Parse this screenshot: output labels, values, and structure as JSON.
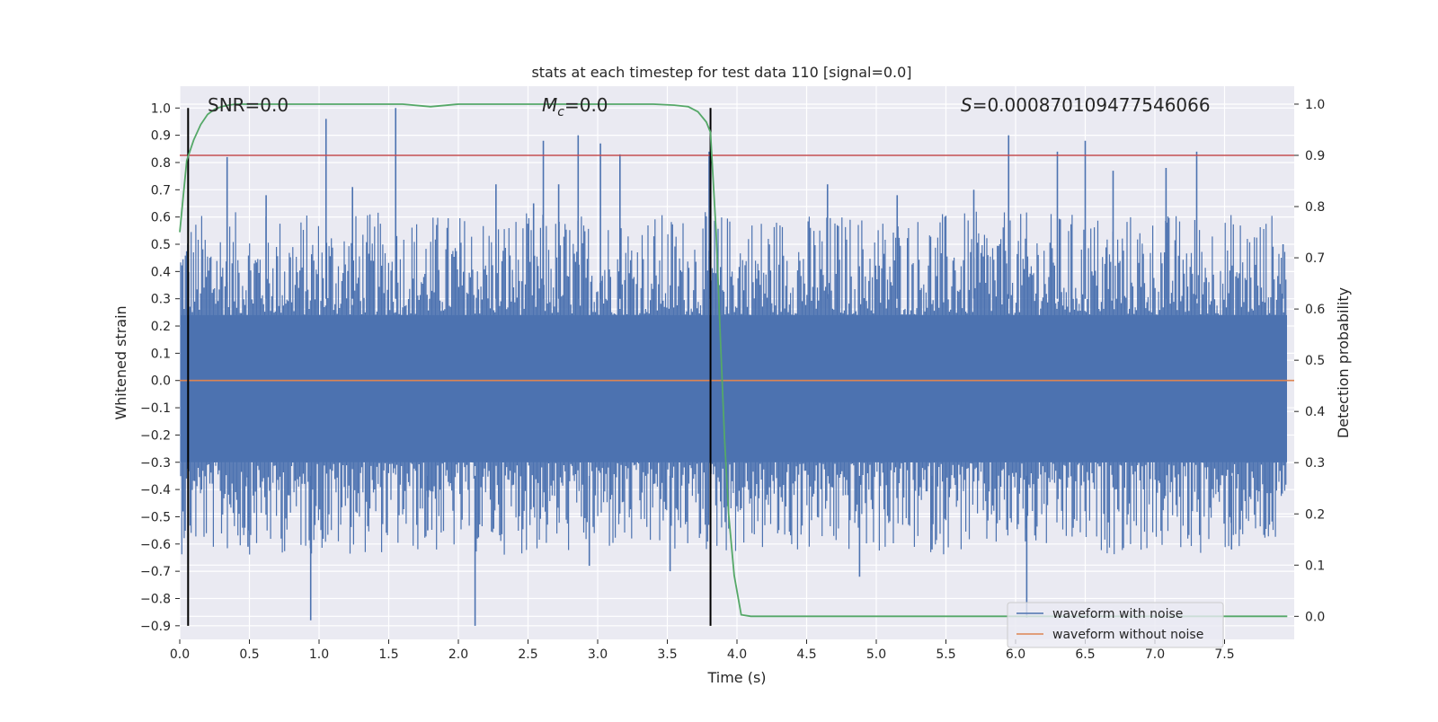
{
  "chart_data": {
    "type": "line",
    "title": "stats at each timestep for test data 110 [signal=0.0]",
    "xlabel": "Time (s)",
    "ylabel": "Whitened strain",
    "y2label": "Detection probability",
    "xlim": [
      0.0,
      8.0
    ],
    "ylim": [
      -0.95,
      1.08
    ],
    "y2lim": [
      -0.045,
      1.035
    ],
    "x_ticks": [
      "0.0",
      "0.5",
      "1.0",
      "1.5",
      "2.0",
      "2.5",
      "3.0",
      "3.5",
      "4.0",
      "4.5",
      "5.0",
      "5.5",
      "6.0",
      "6.5",
      "7.0",
      "7.5"
    ],
    "x_tick_values": [
      0.0,
      0.5,
      1.0,
      1.5,
      2.0,
      2.5,
      3.0,
      3.5,
      4.0,
      4.5,
      5.0,
      5.5,
      6.0,
      6.5,
      7.0,
      7.5
    ],
    "y_ticks": [
      "1.0",
      "0.9",
      "0.8",
      "0.7",
      "0.6",
      "0.5",
      "0.4",
      "0.3",
      "0.2",
      "0.1",
      "0.0",
      "−0.1",
      "−0.2",
      "−0.3",
      "−0.4",
      "−0.5",
      "−0.6",
      "−0.7",
      "−0.8",
      "−0.9"
    ],
    "y_tick_values": [
      1.0,
      0.9,
      0.8,
      0.7,
      0.6,
      0.5,
      0.4,
      0.3,
      0.2,
      0.1,
      0.0,
      -0.1,
      -0.2,
      -0.3,
      -0.4,
      -0.5,
      -0.6,
      -0.7,
      -0.8,
      -0.9
    ],
    "y2_ticks": [
      "1.0",
      "0.9",
      "0.8",
      "0.7",
      "0.6",
      "0.5",
      "0.4",
      "0.3",
      "0.2",
      "0.1",
      "0.0"
    ],
    "y2_tick_values": [
      1.0,
      0.9,
      0.8,
      0.7,
      0.6,
      0.5,
      0.4,
      0.3,
      0.2,
      0.1,
      0.0
    ],
    "annotations": {
      "snr": "SNR=0.0",
      "mc_symbol": "M",
      "mc_sub": "c",
      "mc_value": "=0.0",
      "s_symbol": "S",
      "s_value": "=0.000870109477546066"
    },
    "vlines_x": [
      0.06,
      3.81
    ],
    "threshold_y2": 0.9,
    "series": [
      {
        "name": "waveform with noise",
        "color": "#4c72b0",
        "display": "dense noise band, envelope approx ±0.45 with spikes",
        "spikes_x": [
          0.06,
          0.34,
          0.49,
          0.62,
          0.94,
          1.05,
          1.24,
          1.55,
          1.78,
          2.12,
          2.27,
          2.54,
          2.61,
          2.72,
          2.86,
          2.94,
          3.02,
          3.16,
          3.52,
          3.8,
          4.65,
          4.88,
          5.15,
          5.4,
          5.7,
          5.95,
          6.08,
          6.3,
          6.5,
          6.7,
          7.08,
          7.3,
          7.55,
          7.92
        ],
        "spikes_y": [
          0.95,
          0.82,
          -0.61,
          0.68,
          -0.88,
          0.96,
          0.71,
          1.0,
          -0.55,
          -0.9,
          0.72,
          0.65,
          0.88,
          0.72,
          0.9,
          -0.68,
          0.87,
          0.83,
          -0.7,
          0.84,
          0.72,
          -0.72,
          0.68,
          -0.62,
          0.7,
          0.9,
          -0.87,
          0.84,
          0.88,
          0.77,
          0.78,
          0.84,
          -0.62,
          0.5
        ]
      },
      {
        "name": "waveform without noise",
        "color": "#dd8452",
        "x": [
          0.0,
          8.0
        ],
        "y": [
          0.0,
          0.0
        ]
      },
      {
        "name": "",
        "color": "#55a868",
        "axis": "y2",
        "x": [
          0.0,
          0.05,
          0.1,
          0.15,
          0.2,
          0.25,
          0.3,
          0.35,
          0.4,
          0.5,
          0.8,
          1.2,
          1.6,
          1.8,
          2.0,
          2.4,
          3.0,
          3.4,
          3.55,
          3.65,
          3.72,
          3.78,
          3.81,
          3.85,
          3.88,
          3.91,
          3.94,
          3.98,
          4.03,
          4.1,
          4.2,
          5.0,
          6.0,
          7.0,
          7.95
        ],
        "y": [
          0.75,
          0.89,
          0.93,
          0.96,
          0.98,
          0.99,
          0.995,
          0.998,
          1.0,
          1.0,
          1.0,
          1.0,
          1.0,
          0.995,
          1.0,
          1.0,
          1.0,
          1.0,
          0.998,
          0.995,
          0.985,
          0.965,
          0.945,
          0.75,
          0.55,
          0.35,
          0.2,
          0.08,
          0.003,
          0.0,
          0.0,
          0.0,
          0.0,
          0.0,
          0.0
        ]
      },
      {
        "name": "",
        "color": "#c44e52",
        "axis": "y2",
        "x": [
          0.0,
          8.0
        ],
        "y": [
          0.9,
          0.9
        ]
      }
    ],
    "legend": {
      "location": "lower-right",
      "entries": [
        "waveform with noise",
        "waveform without noise"
      ]
    },
    "grid": true,
    "colors": {
      "plot_bg": "#eaeaf2",
      "grid": "#ffffff",
      "text": "#262626",
      "vline": "#000000"
    }
  }
}
